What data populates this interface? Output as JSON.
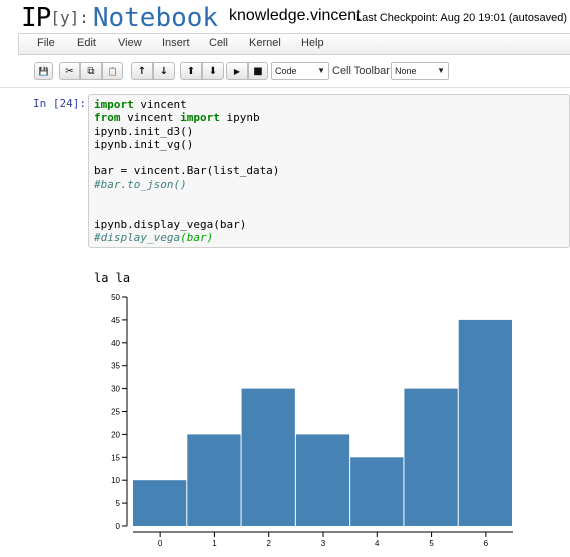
{
  "header": {
    "logo_ip": "IP",
    "logo_bracket": "[y]:",
    "logo_notebook": "Notebook",
    "notebook_name": "knowledge.vincent",
    "checkpoint": "Last Checkpoint: Aug 20 19:01 (autosaved)"
  },
  "menubar": {
    "items": [
      "File",
      "Edit",
      "View",
      "Insert",
      "Cell",
      "Kernel",
      "Help"
    ]
  },
  "toolbar": {
    "buttons": [
      {
        "name": "save-button",
        "icon": "floppy-icon",
        "glyph": "💾"
      },
      {
        "name": "cut-button",
        "icon": "scissors-icon",
        "glyph": "✂"
      },
      {
        "name": "copy-button",
        "icon": "copy-icon",
        "glyph": "⧉"
      },
      {
        "name": "paste-button",
        "icon": "paste-icon",
        "glyph": "📋"
      },
      {
        "name": "move-up-button",
        "icon": "arrow-up-icon",
        "glyph": "↑"
      },
      {
        "name": "move-down-button",
        "icon": "arrow-down-icon",
        "glyph": "↓"
      },
      {
        "name": "run-up-button",
        "icon": "circle-arrow-up-icon",
        "glyph": "⬆"
      },
      {
        "name": "run-down-button",
        "icon": "circle-arrow-down-icon",
        "glyph": "⬇"
      },
      {
        "name": "run-button",
        "icon": "play-icon",
        "glyph": "▶"
      },
      {
        "name": "stop-button",
        "icon": "stop-icon",
        "glyph": "■"
      }
    ],
    "cell_type": "Code",
    "cell_toolbar_label": "Cell Toolbar:",
    "cell_toolbar_value": "None"
  },
  "cell": {
    "prompt": "In [24]:",
    "code": {
      "l1_kw": "import",
      "l1_rest": " vincent",
      "l2_kw1": "from",
      "l2_mid": " vincent ",
      "l2_kw2": "import",
      "l2_rest": " ipynb",
      "l3": "ipynb.init_d3()",
      "l4": "ipynb.init_vg()",
      "l6": "bar = vincent.Bar(list_data)",
      "l7": "#bar.to_json()",
      "l10": "ipynb.display_vega(bar)",
      "l11_a": "#display_vega",
      "l11_b": "(bar)"
    }
  },
  "output": {
    "title": "la la"
  },
  "chart_data": {
    "type": "bar",
    "categories": [
      "0",
      "1",
      "2",
      "3",
      "4",
      "5",
      "6"
    ],
    "values": [
      10,
      20,
      30,
      20,
      15,
      30,
      45
    ],
    "ylim": [
      0,
      50
    ],
    "yticks": [
      0,
      5,
      10,
      15,
      20,
      25,
      30,
      35,
      40,
      45,
      50
    ],
    "bar_color": "#4682b4",
    "grid": false
  }
}
